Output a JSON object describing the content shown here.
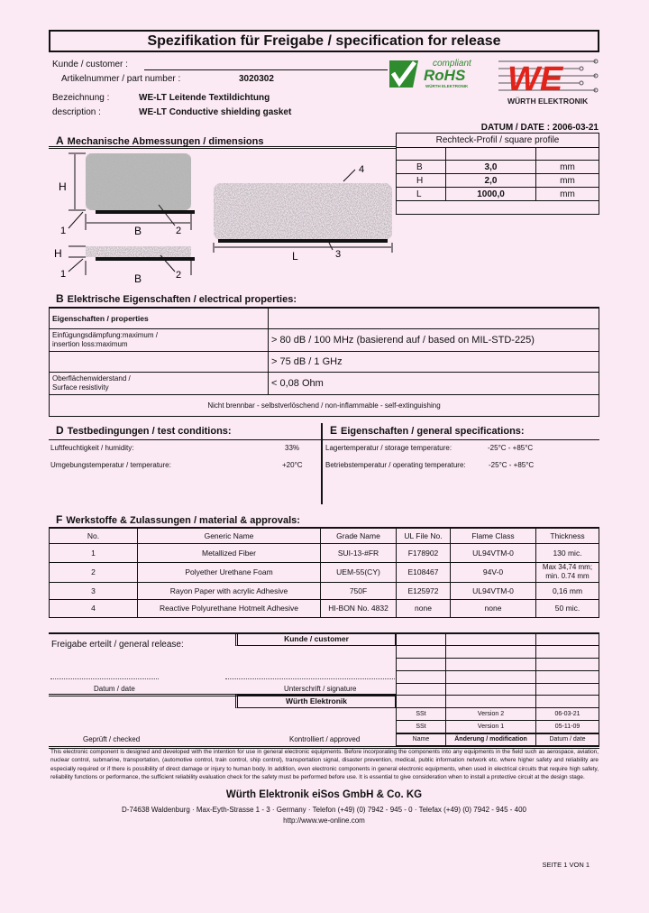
{
  "header": {
    "title": "Spezifikation für Freigabe / specification for release",
    "customer_label": "Kunde / customer :",
    "part_number_label": "Artikelnummer / part number :",
    "part_number": "3020302",
    "designation_label": "Bezeichnung :",
    "designation": "WE-LT Leitende Textildichtung",
    "description_label": "description :",
    "description": "WE-LT Conductive shielding gasket",
    "date_line": "DATUM / DATE : 2006-03-21",
    "rohs_logo": {
      "top": "compliant",
      "main": "RoHS",
      "sub": "WÜRTH ELEKTRONIK"
    },
    "we_logo": {
      "main": "WE",
      "sub": "WÜRTH ELEKTRONIK"
    },
    "colors": {
      "rohs_green": "#2e8b2e",
      "we_red": "#e2231a",
      "background": "#fbe9f4"
    }
  },
  "section_a": {
    "letter": "A",
    "title": "Mechanische Abmessungen / dimensions",
    "diagram_labels": {
      "H": "H",
      "B": "B",
      "L": "L",
      "n1": "1",
      "n2": "2",
      "n3": "3",
      "n4": "4"
    },
    "profile_table": {
      "header": "Rechteck-Profil / square profile",
      "rows": [
        [
          "B",
          "3,0",
          "mm"
        ],
        [
          "H",
          "2,0",
          "mm"
        ],
        [
          "L",
          "1000,0",
          "mm"
        ]
      ]
    }
  },
  "section_b": {
    "letter": "B",
    "title": "Elektrische Eigenschaften  /  electrical properties:",
    "header": "Eigenschaften / properties",
    "rows": [
      {
        "label1": "Einfügungsdämpfung:maximum /",
        "label2": "insertion loss:maximum",
        "value": "> 80 dB / 100 MHz (basierend auf / based on MIL-STD-225)"
      },
      {
        "label1": "",
        "label2": "",
        "value": "> 75 dB / 1 GHz"
      },
      {
        "label1": "Oberflächenwiderstand /",
        "label2": "Surface resistivity",
        "value": "< 0,08 Ohm"
      }
    ],
    "footer": "Nicht brennbar - selbstverlöschend / non-inflammable - self-extinguishing"
  },
  "section_d": {
    "letter": "D",
    "title": "Testbedingungen / test conditions:",
    "rows": [
      [
        "Luftfeuchtigkeit / humidity:",
        "33%"
      ],
      [
        "Umgebungstemperatur / temperature:",
        "+20°C"
      ]
    ]
  },
  "section_e": {
    "letter": "E",
    "title": "Eigenschaften / general specifications:",
    "rows": [
      [
        "Lagertemperatur / storage temperature:",
        "-25°C - +85°C"
      ],
      [
        "Betriebstemperatur / operating temperature:",
        "-25°C - +85°C"
      ]
    ]
  },
  "section_f": {
    "letter": "F",
    "title": "Werkstoffe & Zulassungen / material & approvals:",
    "columns": [
      "No.",
      "Generic Name",
      "Grade Name",
      "UL File No.",
      "Flame Class",
      "Thickness"
    ],
    "rows": [
      [
        "1",
        "Metallized Fiber",
        "SUI-13-#FR",
        "F178902",
        "UL94VTM-0",
        "130 mic."
      ],
      [
        "2",
        "Polyether Urethane Foam",
        "UEM-55(CY)",
        "E108467",
        "94V-0",
        "Max 34,74 mm; min. 0.74 mm"
      ],
      [
        "3",
        "Rayon Paper with acrylic Adhesive",
        "750F",
        "E125972",
        "UL94VTM-0",
        "0,16 mm"
      ],
      [
        "4",
        "Reactive Polyurethane Hotmelt Adhesive",
        "HI-BON No. 4832",
        "none",
        "none",
        "50 mic."
      ]
    ]
  },
  "release": {
    "general_release": "Freigabe erteilt / general release:",
    "customer_box": "Kunde / customer",
    "date_label": "Datum / date",
    "signature_label": "Unterschrift / signature",
    "we_box": "Würth Elektronik",
    "checked_label": "Geprüft / checked",
    "approved_label": "Kontrolliert / approved",
    "revisions": [
      [
        "SSt",
        "Version 2",
        "06-03-21"
      ],
      [
        "SSt",
        "Version 1",
        "05-11-09"
      ]
    ],
    "revision_header": [
      "Name",
      "Änderung / modification",
      "Datum / date"
    ]
  },
  "footer": {
    "disclaimer": "This electronic component is designed and developed with the intention for use in general electronic equipments. Before incorporating the components into any equipments in the field such as aerospace, aviation, nuclear control, submarine, transportation, (automotive control, train control, ship control), transportation signal, disaster prevention, medical, public information network etc. where higher safety and reliability are especially required or if there is possibility of direct damage or injury to human body. In addition, even electronic components in general electronic equipments, when used in electrical circuits that require high safety, reliability functions or performance, the sufficient reliability evaluation check for the safety must be performed before use. It is essential to give consideration when to install a protective circuit at the design stage.",
    "company": "Würth Elektronik eiSos GmbH & Co. KG",
    "address": "D-74638 Waldenburg · Max-Eyth-Strasse 1 - 3 · Germany · Telefon (+49) (0) 7942 - 945 - 0 · Telefax (+49) (0) 7942 - 945 - 400",
    "url": "http://www.we-online.com",
    "page": "SEITE 1 VON 1"
  }
}
